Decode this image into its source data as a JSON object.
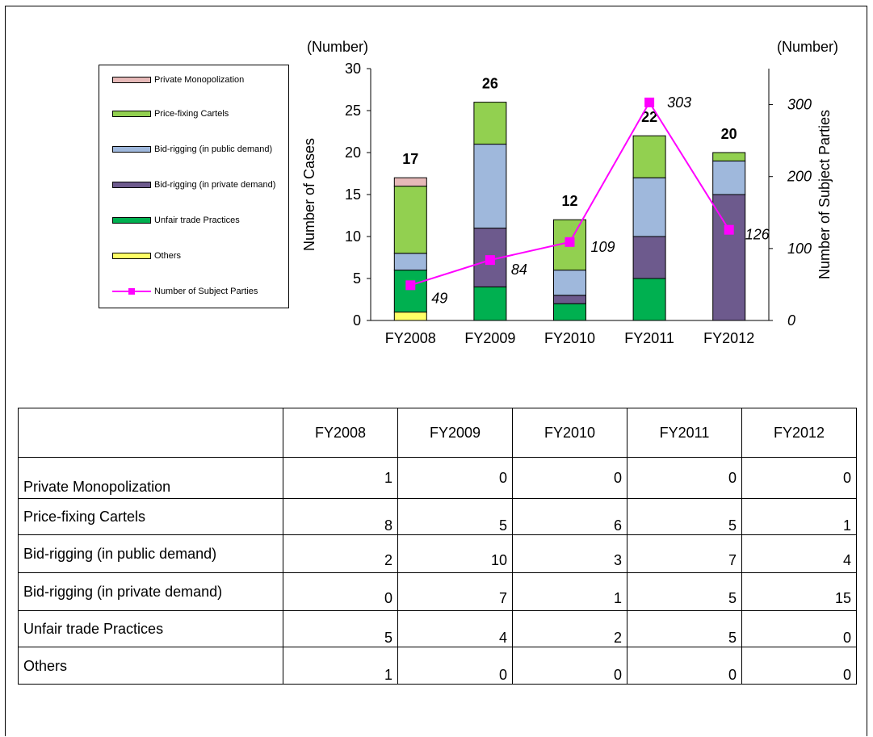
{
  "chart_data": {
    "type": "bar",
    "stacked": true,
    "categories": [
      "FY2008",
      "FY2009",
      "FY2010",
      "FY2011",
      "FY2012"
    ],
    "series": [
      {
        "name": "Others",
        "values": [
          1,
          0,
          0,
          0,
          0
        ],
        "color": "#ffff66"
      },
      {
        "name": "Unfair trade Practices",
        "values": [
          5,
          4,
          2,
          5,
          0
        ],
        "color": "#00b050"
      },
      {
        "name": "Bid-rigging (in private demand)",
        "values": [
          0,
          7,
          1,
          5,
          15
        ],
        "color": "#6d5a8d"
      },
      {
        "name": "Bid-rigging (in public demand)",
        "values": [
          2,
          10,
          3,
          7,
          4
        ],
        "color": "#9fb8dc"
      },
      {
        "name": "Price-fixing Cartels",
        "values": [
          8,
          5,
          6,
          5,
          1
        ],
        "color": "#92d050"
      },
      {
        "name": "Private Monopolization",
        "values": [
          1,
          0,
          0,
          0,
          0
        ],
        "color": "#e6b9b8"
      }
    ],
    "totals": [
      17,
      26,
      12,
      22,
      20
    ],
    "line_series": {
      "name": "Number of Subject Parties",
      "values": [
        49,
        84,
        109,
        303,
        126
      ],
      "color": "#ff00ff",
      "axis": "right"
    },
    "ylabel": "Number of Cases",
    "y_unit_label": "(Number)",
    "ylim": [
      0,
      30
    ],
    "yticks": [
      0,
      5,
      10,
      15,
      20,
      25,
      30
    ],
    "y2label": "Number of Subject Parties",
    "y2_unit_label": "(Number)",
    "y2lim": [
      0,
      350
    ],
    "y2ticks": [
      0,
      100,
      200,
      300
    ],
    "legend_position": "left"
  },
  "legend": {
    "items": [
      {
        "label": "Private Monopolization",
        "kind": "bar",
        "color": "#e6b9b8"
      },
      {
        "label": "Price-fixing Cartels",
        "kind": "bar",
        "color": "#92d050"
      },
      {
        "label": "Bid-rigging (in public demand)",
        "kind": "bar",
        "color": "#9fb8dc"
      },
      {
        "label": "Bid-rigging (in private demand)",
        "kind": "bar",
        "color": "#6d5a8d"
      },
      {
        "label": "Unfair trade Practices",
        "kind": "bar",
        "color": "#00b050"
      },
      {
        "label": "Others",
        "kind": "bar",
        "color": "#ffff66"
      },
      {
        "label": "Number of Subject Parties",
        "kind": "line",
        "color": "#ff00ff"
      }
    ]
  },
  "table": {
    "headers": [
      "",
      "FY2008",
      "FY2009",
      "FY2010",
      "FY2011",
      "FY2012"
    ],
    "rows": [
      {
        "label": "Private Monopolization",
        "values": [
          "1",
          "0",
          "0",
          "0",
          "0"
        ]
      },
      {
        "label": "Price-fixing Cartels",
        "values": [
          "8",
          "5",
          "6",
          "5",
          "1"
        ]
      },
      {
        "label": "Bid-rigging (in public demand)",
        "values": [
          "2",
          "10",
          "3",
          "7",
          "4"
        ]
      },
      {
        "label": "Bid-rigging (in private demand)",
        "values": [
          "0",
          "7",
          "1",
          "5",
          "15"
        ]
      },
      {
        "label": "Unfair trade Practices",
        "values": [
          "5",
          "4",
          "2",
          "5",
          "0"
        ]
      },
      {
        "label": "Others",
        "values": [
          "1",
          "0",
          "0",
          "0",
          "0"
        ]
      }
    ]
  }
}
